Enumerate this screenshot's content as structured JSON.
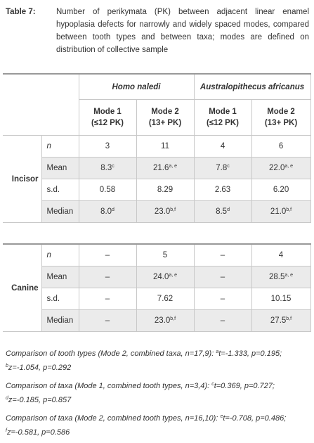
{
  "caption": {
    "label": "Table 7:",
    "text": "Number of perikymata (PK) between adjacent linear enamel hypoplasia defects for narrowly and widely spaced modes, compared between tooth types and between taxa; modes are defined on distribution of collective sample"
  },
  "table": {
    "taxa": [
      "Homo naledi",
      "Australopithecus africanus"
    ],
    "modes": [
      {
        "name": "Mode 1",
        "range": "(≤12 PK)"
      },
      {
        "name": "Mode 2",
        "range": "(13+ PK)"
      },
      {
        "name": "Mode 1",
        "range": "(≤12 PK)"
      },
      {
        "name": "Mode 2",
        "range": "(13+ PK)"
      }
    ],
    "groups": [
      {
        "name": "Incisor",
        "rows": [
          {
            "stat": "n",
            "cells": [
              {
                "v": "3"
              },
              {
                "v": "11"
              },
              {
                "v": "4"
              },
              {
                "v": "6"
              }
            ]
          },
          {
            "stat": "Mean",
            "cells": [
              {
                "v": "8.3",
                "sup": "c"
              },
              {
                "v": "21.6",
                "sup": "a, e"
              },
              {
                "v": "7.8",
                "sup": "c"
              },
              {
                "v": "22.0",
                "sup": "a, e"
              }
            ]
          },
          {
            "stat": "s.d.",
            "cells": [
              {
                "v": "0.58"
              },
              {
                "v": "8.29"
              },
              {
                "v": "2.63"
              },
              {
                "v": "6.20"
              }
            ]
          },
          {
            "stat": "Median",
            "cells": [
              {
                "v": "8.0",
                "sup": "d"
              },
              {
                "v": "23.0",
                "sup": "b,f"
              },
              {
                "v": "8.5",
                "sup": "d"
              },
              {
                "v": "21.0",
                "sup": "b,f"
              }
            ]
          }
        ]
      },
      {
        "name": "Canine",
        "rows": [
          {
            "stat": "n",
            "cells": [
              {
                "v": "–"
              },
              {
                "v": "5"
              },
              {
                "v": "–"
              },
              {
                "v": "4"
              }
            ]
          },
          {
            "stat": "Mean",
            "cells": [
              {
                "v": "–"
              },
              {
                "v": "24.0",
                "sup": "a, e"
              },
              {
                "v": "–"
              },
              {
                "v": "28.5",
                "sup": "a, e"
              }
            ]
          },
          {
            "stat": "s.d.",
            "cells": [
              {
                "v": "–"
              },
              {
                "v": "7.62"
              },
              {
                "v": "–"
              },
              {
                "v": "10.15"
              }
            ]
          },
          {
            "stat": "Median",
            "cells": [
              {
                "v": "–"
              },
              {
                "v": "23.0",
                "sup": "b,f"
              },
              {
                "v": "–"
              },
              {
                "v": "27.5",
                "sup": "b,f"
              }
            ]
          }
        ]
      }
    ]
  },
  "notes": [
    {
      "lead": "Comparison of tooth types (Mode 2, combined taxa, n=17,9):",
      "items": [
        {
          "sup": "a",
          "text": "t=-1.333, p=0.195;"
        },
        {
          "sup": "b",
          "text": "z=-1.054, p=0.292"
        }
      ]
    },
    {
      "lead": "Comparison of taxa (Mode 1, combined tooth types, n=3,4):",
      "items": [
        {
          "sup": "c",
          "text": "t=0.369, p=0.727;"
        },
        {
          "sup": "d",
          "text": "z=-0.185, p=0.857"
        }
      ]
    },
    {
      "lead": "Comparison of taxa (Mode 2, combined tooth types, n=16,10):",
      "items": [
        {
          "sup": "e",
          "text": "t=-0.708, p=0.486;"
        },
        {
          "sup": "f",
          "text": "z=-0.581, p=0.586"
        }
      ]
    }
  ]
}
